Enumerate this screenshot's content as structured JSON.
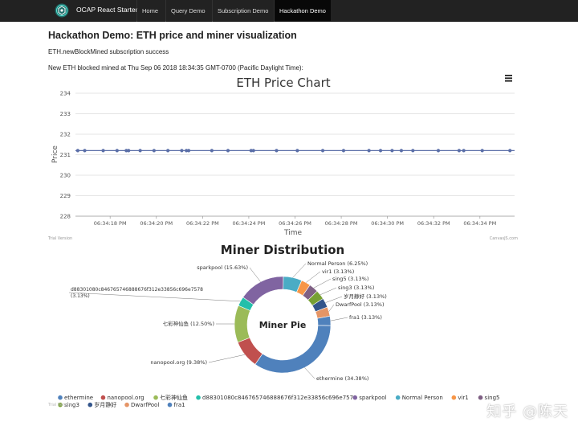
{
  "navbar": {
    "brand": "OCAP React Starter",
    "items": [
      {
        "label": "Home",
        "active": false
      },
      {
        "label": "Query Demo",
        "active": false
      },
      {
        "label": "Subscription Demo",
        "active": false
      },
      {
        "label": "Hackathon Demo",
        "active": true
      }
    ]
  },
  "page": {
    "title": "Hackathon Demo: ETH price and miner visualization",
    "subscription_status": "ETH.newBlockMined subscription success",
    "block_mined": "New ETH blocked mined at Thu Sep 06 2018 18:34:35 GMT-0700 (Pacific Daylight Time):"
  },
  "price_chart": {
    "title": "ETH Price Chart",
    "credit_left": "Trial Version",
    "credit_right": "CanvasJS.com",
    "menu_icon": "hamburger-menu-icon",
    "line_color": "#5b6fa8"
  },
  "pie_chart": {
    "title": "Miner Distribution",
    "center_label": "Miner Pie",
    "credit_left": "Trial Version"
  },
  "watermark": "知乎 @陈天",
  "chart_data": [
    {
      "type": "line",
      "title": "ETH Price Chart",
      "xlabel": "Time",
      "ylabel": "Price",
      "ylim": [
        228,
        234
      ],
      "yticks": [
        228,
        229,
        230,
        231,
        232,
        233,
        234
      ],
      "xlim": [
        "06:34:16.5 PM",
        "06:34:35.5 PM"
      ],
      "xticks": [
        "06:34:18 PM",
        "06:34:20 PM",
        "06:34:22 PM",
        "06:34:24 PM",
        "06:34:26 PM",
        "06:34:28 PM",
        "06:34:30 PM",
        "06:34:32 PM",
        "06:34:34 PM"
      ],
      "grid": true,
      "x": [
        "06:34:16.6",
        "06:34:16.9",
        "06:34:17.7",
        "06:34:18.3",
        "06:34:18.7",
        "06:34:18.8",
        "06:34:19.3",
        "06:34:19.9",
        "06:34:20.5",
        "06:34:21.1",
        "06:34:21.3",
        "06:34:21.4",
        "06:34:22.4",
        "06:34:23.1",
        "06:34:24.1",
        "06:34:24.2",
        "06:34:25.2",
        "06:34:26.1",
        "06:34:27.2",
        "06:34:28.1",
        "06:34:29.2",
        "06:34:29.7",
        "06:34:30.2",
        "06:34:30.6",
        "06:34:31.1",
        "06:34:32.2",
        "06:34:33.1",
        "06:34:33.3",
        "06:34:34.1",
        "06:34:35.3"
      ],
      "series": [
        {
          "values": [
            231.2,
            231.2,
            231.2,
            231.2,
            231.2,
            231.2,
            231.2,
            231.2,
            231.2,
            231.2,
            231.2,
            231.2,
            231.2,
            231.2,
            231.2,
            231.2,
            231.2,
            231.2,
            231.2,
            231.2,
            231.2,
            231.2,
            231.2,
            231.2,
            231.2,
            231.2,
            231.2,
            231.2,
            231.2,
            231.2
          ]
        }
      ]
    },
    {
      "type": "pie",
      "title": "Miner Distribution",
      "center_label": "Miner Pie",
      "legend_placement": "bottom",
      "slices": [
        {
          "name": "ethermine",
          "label": "ethermine (34.38%)",
          "value": 34.38,
          "color": "#4f81bc"
        },
        {
          "name": "nanopool.org",
          "label": "nanopool.org (9.38%)",
          "value": 9.38,
          "color": "#c0504e"
        },
        {
          "name": "七彩神仙鱼",
          "label": "七彩神仙鱼 (12.50%)",
          "value": 12.5,
          "color": "#9bbb58"
        },
        {
          "name": "d88301080c846765746888676f312e33856c696e7578",
          "label": "d88301080c846765746888676f312e33856c696e7578 (3.13%)",
          "value": 3.13,
          "color": "#23bfaa"
        },
        {
          "name": "sparkpool",
          "label": "sparkpool (15.63%)",
          "value": 15.63,
          "color": "#8064a1"
        },
        {
          "name": "Normal Person",
          "label": "Normal Person (6.25%)",
          "value": 6.25,
          "color": "#4aacc5"
        },
        {
          "name": "vir1",
          "label": "vir1 (3.13%)",
          "value": 3.13,
          "color": "#f79647"
        },
        {
          "name": "sing5",
          "label": "sing5 (3.13%)",
          "value": 3.13,
          "color": "#7f6084"
        },
        {
          "name": "sing3",
          "label": "sing3 (3.13%)",
          "value": 3.13,
          "color": "#77a033"
        },
        {
          "name": "岁月静好",
          "label": "岁月静好 (3.13%)",
          "value": 3.13,
          "color": "#33558b"
        },
        {
          "name": "DwarfPool",
          "label": "DwarfPool (3.13%)",
          "value": 3.13,
          "color": "#e59566"
        },
        {
          "name": "fra1",
          "label": "fra1 (3.13%)",
          "value": 3.13,
          "color": "#4f81bc"
        }
      ]
    }
  ]
}
